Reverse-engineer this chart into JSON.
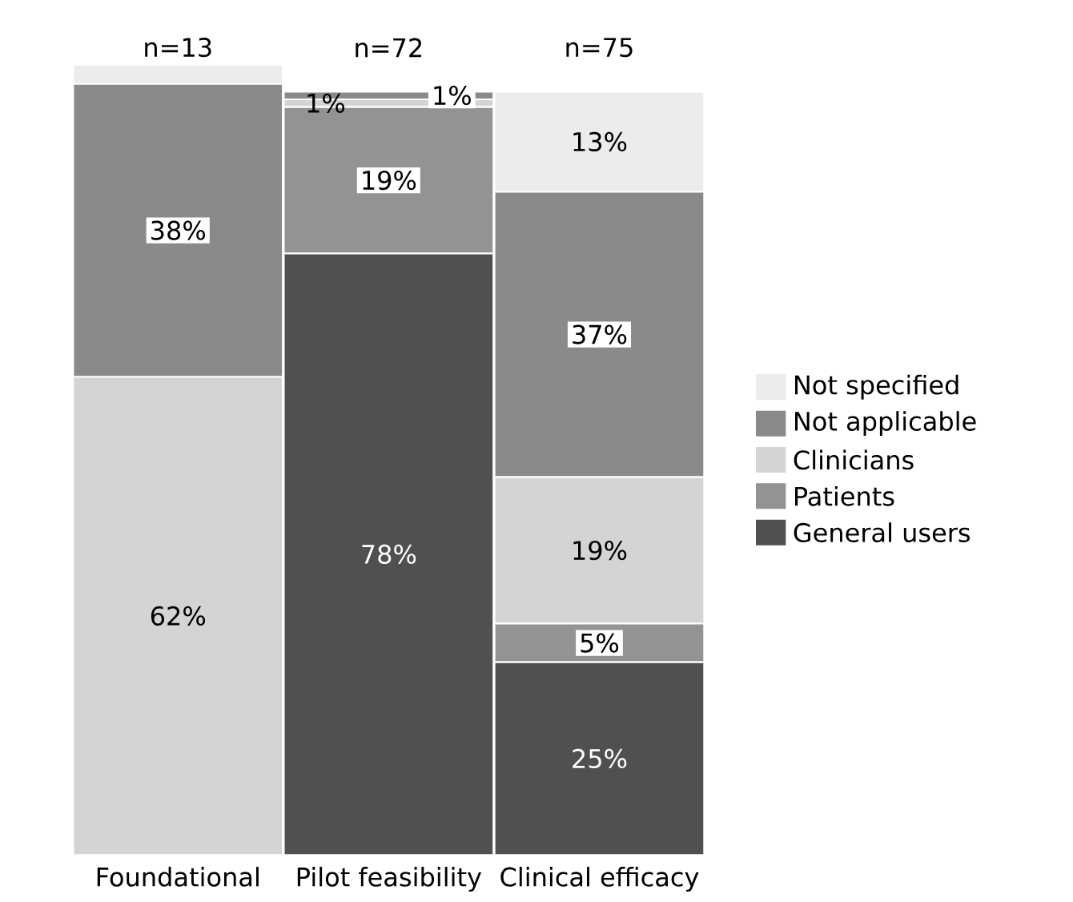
{
  "chart_data": {
    "type": "bar",
    "stacked": true,
    "categories": [
      "Foundational",
      "Pilot feasibility",
      "Clinical efficacy"
    ],
    "series": [
      {
        "name": "General users",
        "color": "#505050",
        "values": [
          null,
          78,
          25
        ],
        "value_labels": [
          null,
          "78%",
          "25%"
        ]
      },
      {
        "name": "Patients",
        "color": "#939393",
        "values": [
          null,
          19,
          5
        ],
        "value_labels": [
          null,
          "19%",
          "5%"
        ]
      },
      {
        "name": "Clinicians",
        "color": "#d4d4d4",
        "values": [
          62,
          1,
          19
        ],
        "value_labels": [
          "62%",
          "1%",
          "19%"
        ]
      },
      {
        "name": "Not applicable",
        "color": "#8a8a8a",
        "values": [
          38,
          1,
          37
        ],
        "value_labels": [
          "38%",
          "1%",
          "37%"
        ]
      },
      {
        "name": "Not specified",
        "color": "#ececec",
        "values": [
          2.5,
          null,
          13
        ],
        "value_labels": [
          null,
          null,
          "13%"
        ]
      }
    ],
    "annotations": [
      "n=13",
      "n=72",
      "n=75"
    ],
    "legend": "right"
  }
}
